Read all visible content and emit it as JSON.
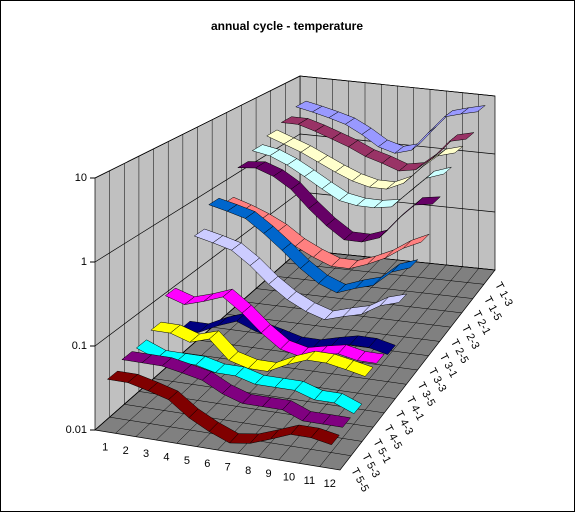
{
  "chart_data": {
    "type": "ribbon3d",
    "title": "annual cycle - temperature",
    "log_scale": true,
    "grid": true,
    "ylim": [
      0.01,
      10
    ],
    "yticks": [
      0.01,
      0.1,
      1,
      10
    ],
    "categories": [
      "1",
      "2",
      "3",
      "4",
      "5",
      "6",
      "7",
      "8",
      "9",
      "10",
      "11",
      "12"
    ],
    "wall_color": "#c0c0c0",
    "floor_color": "#808080",
    "series": [
      {
        "name": "T 1-3",
        "color": "#9999ff",
        "values": [
          4,
          3.5,
          3,
          2.5,
          1.8,
          1.2,
          1.0,
          1.2,
          2.5,
          5,
          6,
          7
        ]
      },
      {
        "name": "T 1-5",
        "color": "#993366",
        "values": [
          3,
          3,
          2.5,
          2,
          1.6,
          1.2,
          1.0,
          0.8,
          0.9,
          1.5,
          3,
          3.5
        ]
      },
      {
        "name": "T 2-1",
        "color": "#ffffcc",
        "values": [
          2.5,
          2,
          1.6,
          1.2,
          0.9,
          0.7,
          0.6,
          0.6,
          0.8,
          1.5,
          2.5,
          3
        ]
      },
      {
        "name": "T 2-3",
        "color": "#ccffff",
        "values": [
          2,
          1.8,
          1.4,
          1.0,
          0.7,
          0.5,
          0.45,
          0.45,
          0.5,
          0.9,
          1.6,
          2
        ]
      },
      {
        "name": "T 2-5",
        "color": "#660066",
        "values": [
          1.5,
          1.6,
          1.3,
          0.9,
          0.5,
          0.3,
          0.2,
          0.2,
          0.25,
          0.5,
          0.9,
          1.0
        ]
      },
      {
        "name": "T 3-1",
        "color": "#ff8080",
        "values": [
          0.6,
          0.5,
          0.4,
          0.3,
          0.2,
          0.15,
          0.12,
          0.12,
          0.15,
          0.2,
          0.3,
          0.4
        ]
      },
      {
        "name": "T 3-3",
        "color": "#0066cc",
        "values": [
          0.8,
          0.7,
          0.6,
          0.4,
          0.25,
          0.15,
          0.1,
          0.08,
          0.1,
          0.12,
          0.2,
          0.25
        ]
      },
      {
        "name": "T 3-5",
        "color": "#ccccff",
        "values": [
          0.4,
          0.35,
          0.3,
          0.2,
          0.12,
          0.08,
          0.06,
          0.05,
          0.06,
          0.07,
          0.1,
          0.12
        ]
      },
      {
        "name": "T 4-1",
        "color": "#000080",
        "values": [
          0.03,
          0.03,
          0.04,
          0.05,
          0.04,
          0.035,
          0.03,
          0.03,
          0.035,
          0.04,
          0.04,
          0.035
        ]
      },
      {
        "name": "T 4-3",
        "color": "#ff00ff",
        "values": [
          0.12,
          0.1,
          0.12,
          0.15,
          0.1,
          0.06,
          0.04,
          0.035,
          0.04,
          0.045,
          0.04,
          0.04
        ]
      },
      {
        "name": "T 4-5",
        "color": "#ffff00",
        "values": [
          0.06,
          0.06,
          0.05,
          0.06,
          0.035,
          0.03,
          0.03,
          0.04,
          0.05,
          0.05,
          0.045,
          0.04
        ]
      },
      {
        "name": "T 5-1",
        "color": "#00ffff",
        "values": [
          0.05,
          0.04,
          0.04,
          0.04,
          0.035,
          0.035,
          0.03,
          0.03,
          0.03,
          0.025,
          0.025,
          0.02
        ]
      },
      {
        "name": "T 5-3",
        "color": "#800080",
        "values": [
          0.05,
          0.05,
          0.05,
          0.045,
          0.04,
          0.03,
          0.025,
          0.025,
          0.025,
          0.02,
          0.02,
          0.02
        ]
      },
      {
        "name": "T 5-5",
        "color": "#800000",
        "values": [
          0.04,
          0.04,
          0.035,
          0.03,
          0.02,
          0.015,
          0.012,
          0.013,
          0.016,
          0.02,
          0.02,
          0.018
        ]
      }
    ]
  }
}
